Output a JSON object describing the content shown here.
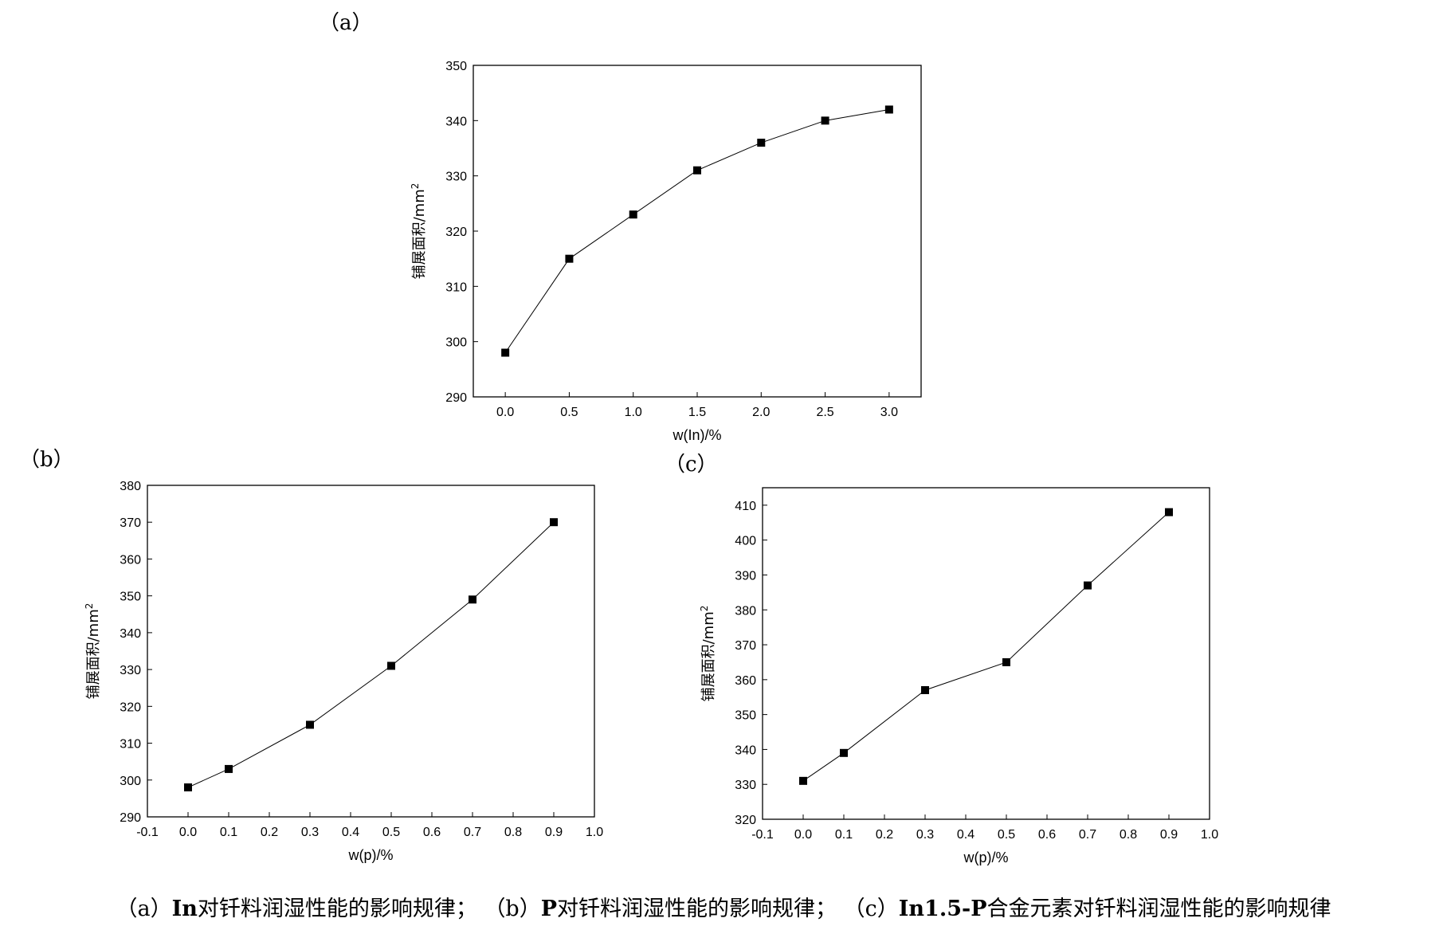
{
  "panels": [
    {
      "label": "（a）"
    },
    {
      "label": "（b）"
    },
    {
      "label": "（c）"
    }
  ],
  "caption": [
    {
      "paren": "（a）",
      "bold": "In",
      "rest": "对钎料润湿性能的影响规律；"
    },
    {
      "paren": "（b）",
      "bold": "P",
      "rest": "对钎料润湿性能的影响规律；"
    },
    {
      "paren": "（c）",
      "bold": "In1.5-P",
      "rest": "合金元素对钎料润湿性能的影响规律"
    }
  ],
  "chart_data": [
    {
      "type": "line",
      "title": "",
      "xlabel": "w(In)/%",
      "ylabel": "铺展面积/mm",
      "ylabel_sup": "2",
      "xlim": [
        -0.25,
        3.25
      ],
      "ylim": [
        290,
        350
      ],
      "xticks": [
        0.0,
        0.5,
        1.0,
        1.5,
        2.0,
        2.5,
        3.0
      ],
      "xtick_labels": [
        "0.0",
        "0.5",
        "1.0",
        "1.5",
        "2.0",
        "2.5",
        "3.0"
      ],
      "yticks": [
        290,
        300,
        310,
        320,
        330,
        340,
        350
      ],
      "ytick_labels": [
        "290",
        "300",
        "310",
        "320",
        "330",
        "340",
        "350"
      ],
      "series": [
        {
          "x": [
            0.0,
            0.5,
            1.0,
            1.5,
            2.0,
            2.5,
            3.0
          ],
          "y": [
            298,
            315,
            323,
            331,
            336,
            340,
            342
          ]
        }
      ]
    },
    {
      "type": "line",
      "title": "",
      "xlabel": "w(p)/%",
      "ylabel": "铺展面积/mm",
      "ylabel_sup": "2",
      "xlim": [
        -0.1,
        1.0
      ],
      "ylim": [
        290,
        380
      ],
      "xticks": [
        -0.1,
        0.0,
        0.1,
        0.2,
        0.3,
        0.4,
        0.5,
        0.6,
        0.7,
        0.8,
        0.9,
        1.0
      ],
      "xtick_labels": [
        "-0.1",
        "0.0",
        "0.1",
        "0.2",
        "0.3",
        "0.4",
        "0.5",
        "0.6",
        "0.7",
        "0.8",
        "0.9",
        "1.0"
      ],
      "yticks": [
        290,
        300,
        310,
        320,
        330,
        340,
        350,
        360,
        370,
        380
      ],
      "ytick_labels": [
        "290",
        "300",
        "310",
        "320",
        "330",
        "340",
        "350",
        "360",
        "370",
        "380"
      ],
      "series": [
        {
          "x": [
            0.0,
            0.1,
            0.3,
            0.5,
            0.7,
            0.9
          ],
          "y": [
            298,
            303,
            315,
            331,
            349,
            370
          ]
        }
      ]
    },
    {
      "type": "line",
      "title": "",
      "xlabel": "w(p)/%",
      "ylabel": "铺展面积/mm",
      "ylabel_sup": "2",
      "xlim": [
        -0.1,
        1.0
      ],
      "ylim": [
        320,
        415
      ],
      "xticks": [
        -0.1,
        0.0,
        0.1,
        0.2,
        0.3,
        0.4,
        0.5,
        0.6,
        0.7,
        0.8,
        0.9,
        1.0
      ],
      "xtick_labels": [
        "-0.1",
        "0.0",
        "0.1",
        "0.2",
        "0.3",
        "0.4",
        "0.5",
        "0.6",
        "0.7",
        "0.8",
        "0.9",
        "1.0"
      ],
      "yticks": [
        320,
        330,
        340,
        350,
        360,
        370,
        380,
        390,
        400,
        410
      ],
      "ytick_labels": [
        "320",
        "330",
        "340",
        "350",
        "360",
        "370",
        "380",
        "390",
        "400",
        "410"
      ],
      "series": [
        {
          "x": [
            0.0,
            0.1,
            0.3,
            0.5,
            0.7,
            0.9
          ],
          "y": [
            331,
            339,
            357,
            365,
            387,
            408
          ]
        }
      ]
    }
  ]
}
